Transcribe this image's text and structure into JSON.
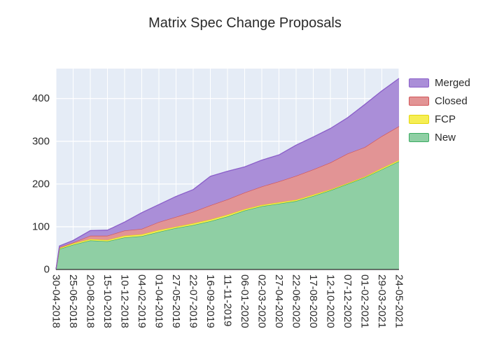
{
  "chart_data": {
    "type": "area",
    "stacked": true,
    "title": "Matrix Spec Change Proposals",
    "plot_bg": "#e5ecf6",
    "grid": true,
    "legend_position": "right",
    "legend_order": [
      "Merged",
      "Closed",
      "FCP",
      "New"
    ],
    "ylim": [
      0,
      470
    ],
    "yticks": [
      0,
      100,
      200,
      300,
      400
    ],
    "categories": [
      "30-04-2018",
      "25-06-2018",
      "20-08-2018",
      "15-10-2018",
      "10-12-2018",
      "04-02-2019",
      "01-04-2019",
      "27-05-2019",
      "22-07-2019",
      "16-09-2019",
      "11-11-2019",
      "06-01-2020",
      "02-03-2020",
      "27-04-2020",
      "22-06-2020",
      "17-08-2020",
      "12-10-2020",
      "07-12-2020",
      "01-02-2021",
      "29-03-2021",
      "24-05-2021"
    ],
    "x": [
      0,
      0.2,
      1,
      2,
      3,
      4,
      5,
      6,
      7,
      8,
      9,
      10,
      11,
      12,
      13,
      14,
      15,
      16,
      17,
      18,
      19,
      20
    ],
    "series": [
      {
        "name": "New",
        "fill": "#8fcfa4",
        "line": "#3bab62",
        "values": [
          0,
          48,
          58,
          68,
          66,
          75,
          78,
          88,
          97,
          104,
          113,
          124,
          138,
          148,
          154,
          160,
          172,
          185,
          200,
          215,
          234,
          253
        ]
      },
      {
        "name": "FCP",
        "fill": "#f6ee54",
        "line": "#e3d70e",
        "values": [
          0,
          2,
          3,
          3,
          3,
          4,
          4,
          4,
          3,
          4,
          4,
          4,
          3,
          3,
          3,
          3,
          3,
          2,
          2,
          2,
          3,
          3
        ]
      },
      {
        "name": "Closed",
        "fill": "#e29495",
        "line": "#d25558",
        "values": [
          0,
          2,
          2,
          8,
          10,
          12,
          13,
          19,
          23,
          27,
          33,
          36,
          39,
          43,
          49,
          56,
          59,
          63,
          69,
          69,
          75,
          79
        ]
      },
      {
        "name": "Merged",
        "fill": "#aa8ed8",
        "line": "#8a5ec9",
        "values": [
          0,
          3,
          5,
          12,
          13,
          20,
          38,
          41,
          48,
          52,
          68,
          66,
          60,
          62,
          62,
          72,
          76,
          80,
          84,
          100,
          106,
          112
        ]
      }
    ],
    "axis_color": "#2a2a2a",
    "tick_font_size": 15
  }
}
